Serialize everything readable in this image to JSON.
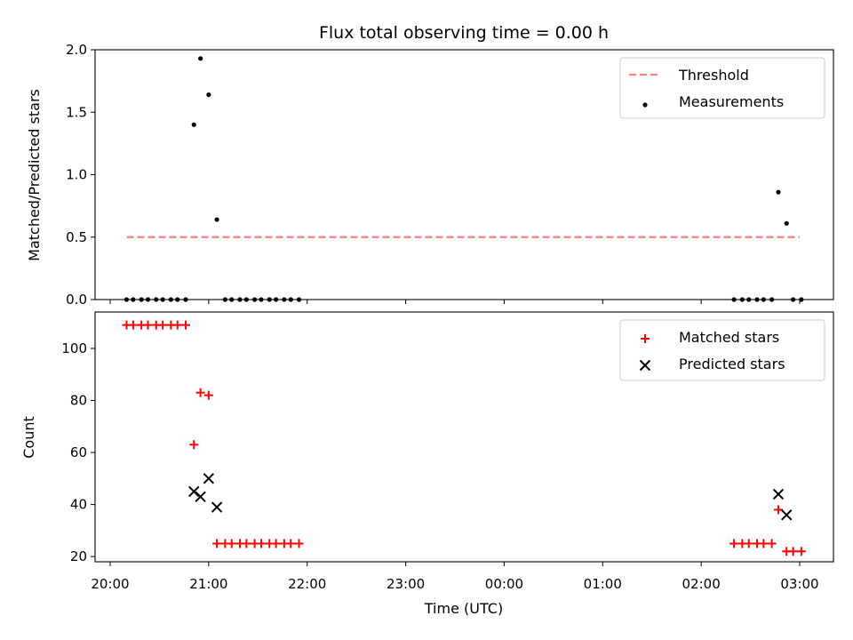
{
  "chart_data": {
    "type": "scatter",
    "title": "Flux total observing time = 0.00 h",
    "xlabel": "Time (UTC)",
    "x_ticks": [
      "20:00",
      "21:00",
      "22:00",
      "23:00",
      "00:00",
      "01:00",
      "02:00",
      "03:00"
    ],
    "xlim": [
      "20:00",
      "03:20"
    ],
    "panels": [
      {
        "ylabel": "Matched/Predicted stars",
        "ylim": [
          0,
          2.0
        ],
        "y_ticks": [
          0.0,
          0.5,
          1.0,
          1.5,
          2.0
        ],
        "y_tick_labels": [
          "0.0",
          "0.5",
          "1.0",
          "1.5",
          "2.0"
        ],
        "legend_position": "top-right",
        "series": [
          {
            "name": "Threshold",
            "kind": "dashed-line",
            "color": "#ff7f7f",
            "x": [
              "20:10",
              "03:00"
            ],
            "y": [
              0.5,
              0.5
            ]
          },
          {
            "name": "Measurements",
            "kind": "dot",
            "color": "#000000",
            "x": [
              "20:10",
              "20:14",
              "20:19",
              "20:23",
              "20:28",
              "20:32",
              "20:37",
              "20:41",
              "20:46",
              "20:51",
              "20:55",
              "21:00",
              "21:05",
              "21:10",
              "21:14",
              "21:19",
              "21:23",
              "21:28",
              "21:32",
              "21:37",
              "21:41",
              "21:46",
              "21:50",
              "21:55",
              "02:20",
              "02:25",
              "02:29",
              "02:34",
              "02:38",
              "02:43",
              "02:47",
              "02:52",
              "02:56",
              "03:01"
            ],
            "y": [
              0,
              0,
              0,
              0,
              0,
              0,
              0,
              0,
              0,
              1.4,
              1.93,
              1.64,
              0.64,
              0,
              0,
              0,
              0,
              0,
              0,
              0,
              0,
              0,
              0,
              0,
              0,
              0,
              0,
              0,
              0,
              0,
              0.86,
              0.61,
              0,
              0
            ]
          }
        ]
      },
      {
        "ylabel": "Count",
        "ylim": [
          18,
          114
        ],
        "y_ticks": [
          20,
          40,
          60,
          80,
          100
        ],
        "y_tick_labels": [
          "20",
          "40",
          "60",
          "80",
          "100"
        ],
        "legend_position": "top-right",
        "series": [
          {
            "name": "Matched stars",
            "kind": "plus",
            "color": "#ff0000",
            "x": [
              "20:10",
              "20:14",
              "20:19",
              "20:23",
              "20:28",
              "20:32",
              "20:37",
              "20:41",
              "20:46",
              "20:51",
              "20:55",
              "21:00",
              "21:05",
              "21:10",
              "21:14",
              "21:19",
              "21:23",
              "21:28",
              "21:32",
              "21:37",
              "21:41",
              "21:46",
              "21:50",
              "21:55",
              "02:20",
              "02:25",
              "02:29",
              "02:34",
              "02:38",
              "02:43",
              "02:47",
              "02:52",
              "02:56",
              "03:01"
            ],
            "y": [
              109,
              109,
              109,
              109,
              109,
              109,
              109,
              109,
              109,
              63,
              83,
              82,
              25,
              25,
              25,
              25,
              25,
              25,
              25,
              25,
              25,
              25,
              25,
              25,
              25,
              25,
              25,
              25,
              25,
              25,
              38,
              22,
              22,
              22
            ]
          },
          {
            "name": "Predicted stars",
            "kind": "cross",
            "color": "#000000",
            "x": [
              "20:51",
              "20:55",
              "21:00",
              "21:05",
              "02:47",
              "02:52"
            ],
            "y": [
              45,
              43,
              50,
              39,
              44,
              36
            ]
          }
        ]
      }
    ]
  }
}
